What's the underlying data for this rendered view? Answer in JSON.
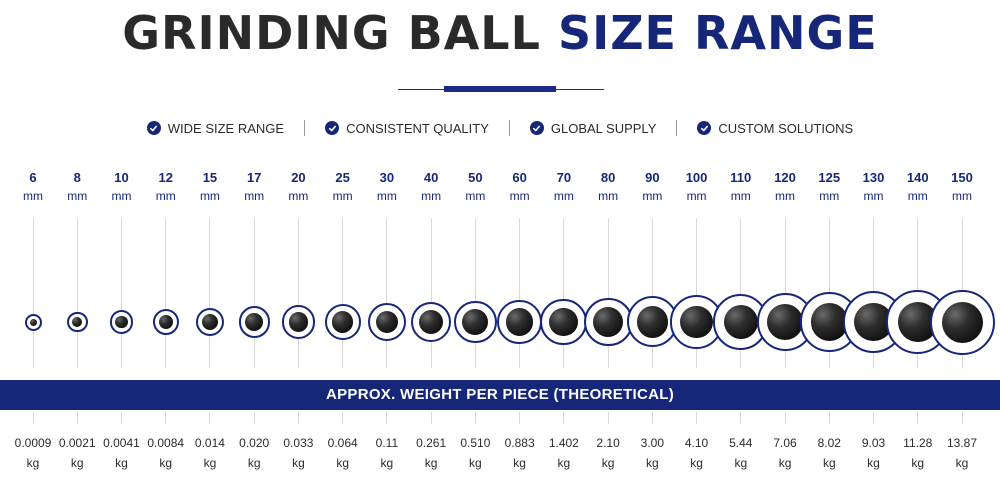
{
  "title": {
    "part1": "GRINDING BALL",
    "part2": "SIZE RANGE"
  },
  "features": [
    "WIDE SIZE RANGE",
    "CONSISTENT QUALITY",
    "GLOBAL SUPPLY",
    "CUSTOM SOLUTIONS"
  ],
  "colors": {
    "navy": "#16277a",
    "dark_text": "#2a2a2a",
    "ball": "#111111"
  },
  "band_label": "APPROX. WEIGHT PER PIECE (THEORETICAL)",
  "size_unit": "mm",
  "weight_unit": "kg",
  "balls": [
    {
      "size": "6",
      "weight": "0.0009"
    },
    {
      "size": "8",
      "weight": "0.0021"
    },
    {
      "size": "10",
      "weight": "0.0041"
    },
    {
      "size": "12",
      "weight": "0.0084"
    },
    {
      "size": "15",
      "weight": "0.014"
    },
    {
      "size": "17",
      "weight": "0.020"
    },
    {
      "size": "20",
      "weight": "0.033"
    },
    {
      "size": "25",
      "weight": "0.064"
    },
    {
      "size": "30",
      "weight": "0.11"
    },
    {
      "size": "40",
      "weight": "0.261"
    },
    {
      "size": "50",
      "weight": "0.510"
    },
    {
      "size": "60",
      "weight": "0.883"
    },
    {
      "size": "70",
      "weight": "1.402"
    },
    {
      "size": "80",
      "weight": "2.10"
    },
    {
      "size": "90",
      "weight": "3.00"
    },
    {
      "size": "100",
      "weight": "4.10"
    },
    {
      "size": "110",
      "weight": "5.44"
    },
    {
      "size": "120",
      "weight": "7.06"
    },
    {
      "size": "125",
      "weight": "8.02"
    },
    {
      "size": "130",
      "weight": "9.03"
    },
    {
      "size": "140",
      "weight": "11.28"
    },
    {
      "size": "150",
      "weight": "13.87"
    }
  ]
}
